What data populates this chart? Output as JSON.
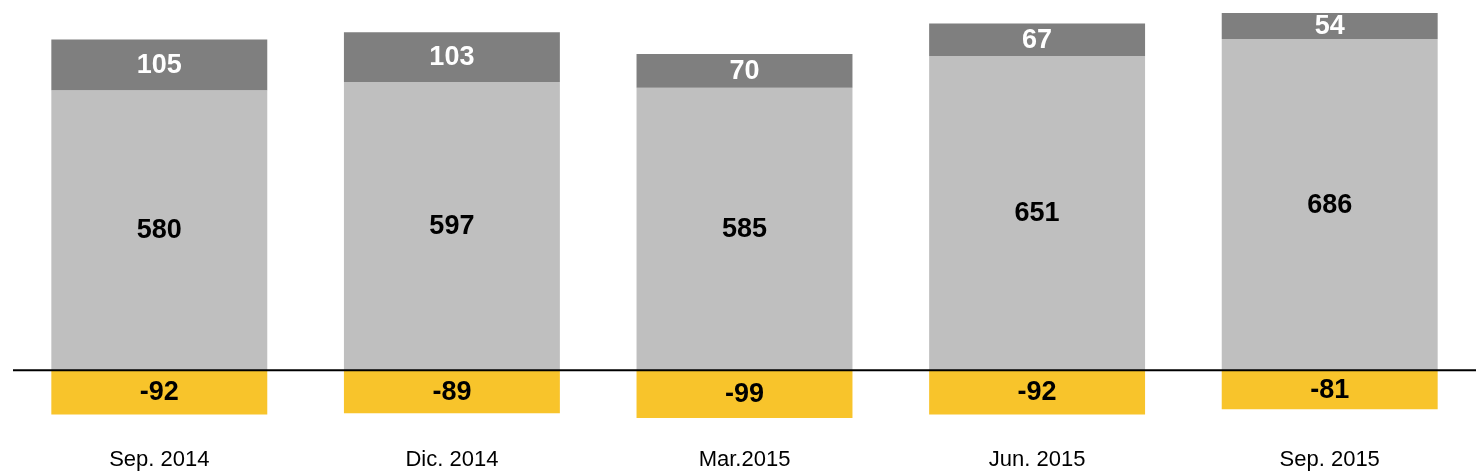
{
  "chart_data": {
    "type": "bar",
    "stacked": true,
    "data_labels": true,
    "tick_labels": "x",
    "categories": [
      "Sep. 2014",
      "Dic. 2014",
      "Mar.2015",
      "Jun. 2015",
      "Sep. 2015"
    ],
    "series": [
      {
        "color": "#bfbfbf",
        "values": [
          580,
          597,
          585,
          651,
          686
        ]
      },
      {
        "color": "#7f7f7f",
        "values": [
          105,
          103,
          70,
          67,
          54
        ]
      },
      {
        "color": "#f8c42b",
        "values": [
          -92,
          -89,
          -99,
          -92,
          -81
        ]
      }
    ]
  }
}
